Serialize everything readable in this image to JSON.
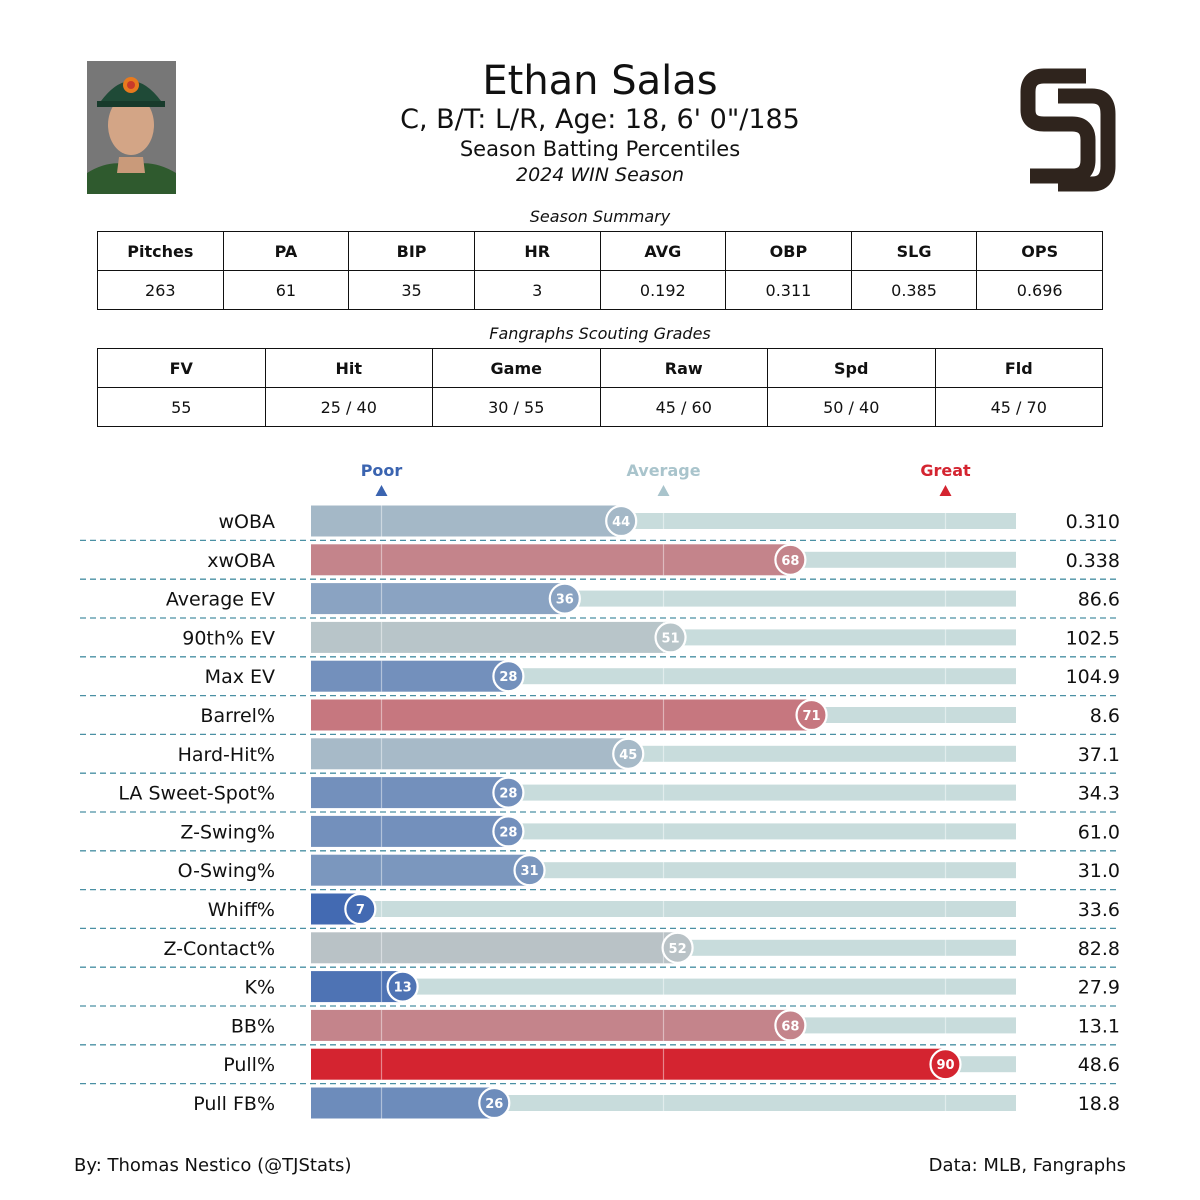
{
  "header": {
    "name": "Ethan Salas",
    "info": "C, B/T: L/R, Age: 18, 6' 0\"/185",
    "title": "Season Batting Percentiles",
    "season": "2024 WIN Season",
    "team_logo_icon": "padres-sd-logo",
    "logo_color": "#2f241d"
  },
  "summary": {
    "caption": "Season Summary",
    "headers": [
      "Pitches",
      "PA",
      "BIP",
      "HR",
      "AVG",
      "OBP",
      "SLG",
      "OPS"
    ],
    "values": [
      "263",
      "61",
      "35",
      "3",
      "0.192",
      "0.311",
      "0.385",
      "0.696"
    ]
  },
  "grades": {
    "caption": "Fangraphs Scouting Grades",
    "headers": [
      "FV",
      "Hit",
      "Game",
      "Raw",
      "Spd",
      "Fld"
    ],
    "values": [
      "55",
      "25 / 40",
      "30 / 55",
      "45 / 60",
      "50 / 40",
      "45 / 70"
    ]
  },
  "chart_data": {
    "type": "bar",
    "orientation": "horizontal",
    "xlim": [
      0,
      100
    ],
    "markers": [
      {
        "label": "Poor",
        "value": 10,
        "color": "#3b64b0"
      },
      {
        "label": "Average",
        "value": 50,
        "color": "#a9c4cc"
      },
      {
        "label": "Great",
        "value": 90,
        "color": "#d42430"
      }
    ],
    "categories": [
      "wOBA",
      "xwOBA",
      "Average EV",
      "90th% EV",
      "Max EV",
      "Barrel%",
      "Hard-Hit%",
      "LA Sweet-Spot%",
      "Z-Swing%",
      "O-Swing%",
      "Whiff%",
      "Z-Contact%",
      "K%",
      "BB%",
      "Pull%",
      "Pull FB%"
    ],
    "percentiles": [
      44,
      68,
      36,
      51,
      28,
      71,
      45,
      28,
      28,
      31,
      7,
      52,
      13,
      68,
      90,
      26
    ],
    "stat_values": [
      "0.310",
      "0.338",
      "86.6",
      "102.5",
      "104.9",
      "8.6",
      "37.1",
      "34.3",
      "61.0",
      "31.0",
      "33.6",
      "82.8",
      "27.9",
      "13.1",
      "48.6",
      "18.8"
    ],
    "track_color": "#c8dcdc",
    "separator_color": "#4a90a4"
  },
  "footer": {
    "left": "By: Thomas Nestico (@TJStats)",
    "right": "Data: MLB, Fangraphs"
  }
}
